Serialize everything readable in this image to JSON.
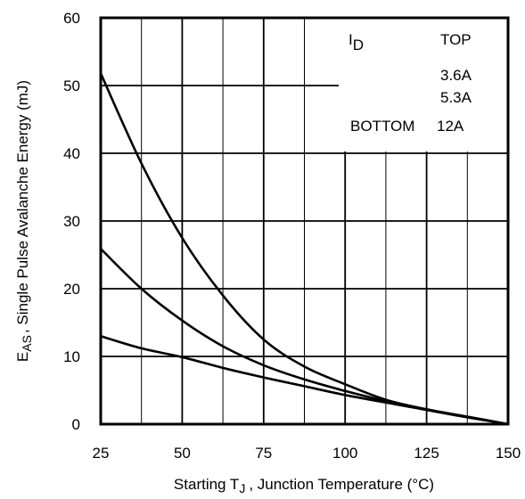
{
  "chart_data": {
    "type": "line",
    "title": "",
    "x": [
      25,
      37.5,
      50,
      62.5,
      75,
      87.5,
      100,
      112.5,
      125,
      137.5,
      150
    ],
    "series": [
      {
        "name": "3.6A",
        "values": [
          51.8,
          38.5,
          27.5,
          19.0,
          12.5,
          8.5,
          5.9,
          3.6,
          2.2,
          1.1,
          0.0
        ]
      },
      {
        "name": "5.3A",
        "values": [
          25.9,
          20.0,
          15.3,
          11.5,
          8.7,
          6.6,
          4.9,
          3.4,
          2.1,
          1.0,
          0.0
        ]
      },
      {
        "name": "12A",
        "values": [
          13.0,
          11.2,
          9.9,
          8.3,
          6.9,
          5.6,
          4.3,
          3.2,
          2.1,
          1.1,
          0.0
        ]
      }
    ],
    "xlim": [
      25,
      150
    ],
    "ylim": [
      0,
      60
    ],
    "x_ticks": [
      "25",
      "50",
      "75",
      "100",
      "125",
      "150"
    ],
    "y_ticks": [
      "0",
      "10",
      "20",
      "30",
      "40",
      "50",
      "60"
    ],
    "xlabel": {
      "before": "Starting T",
      "sub": "J",
      "after": ", Junction Temperature (°C)"
    },
    "ylabel": {
      "main": "E",
      "sub": "AS",
      "after": ", Single Pulse Avalanche Energy (mJ)"
    },
    "legend": {
      "header_symbol": "I",
      "header_sub": "D",
      "top_label": "TOP",
      "bottom_label": "BOTTOM",
      "entries": [
        "3.6A",
        "5.3A",
        "12A"
      ],
      "placement": "top-right"
    },
    "grid": true,
    "line_color": "#000000"
  }
}
